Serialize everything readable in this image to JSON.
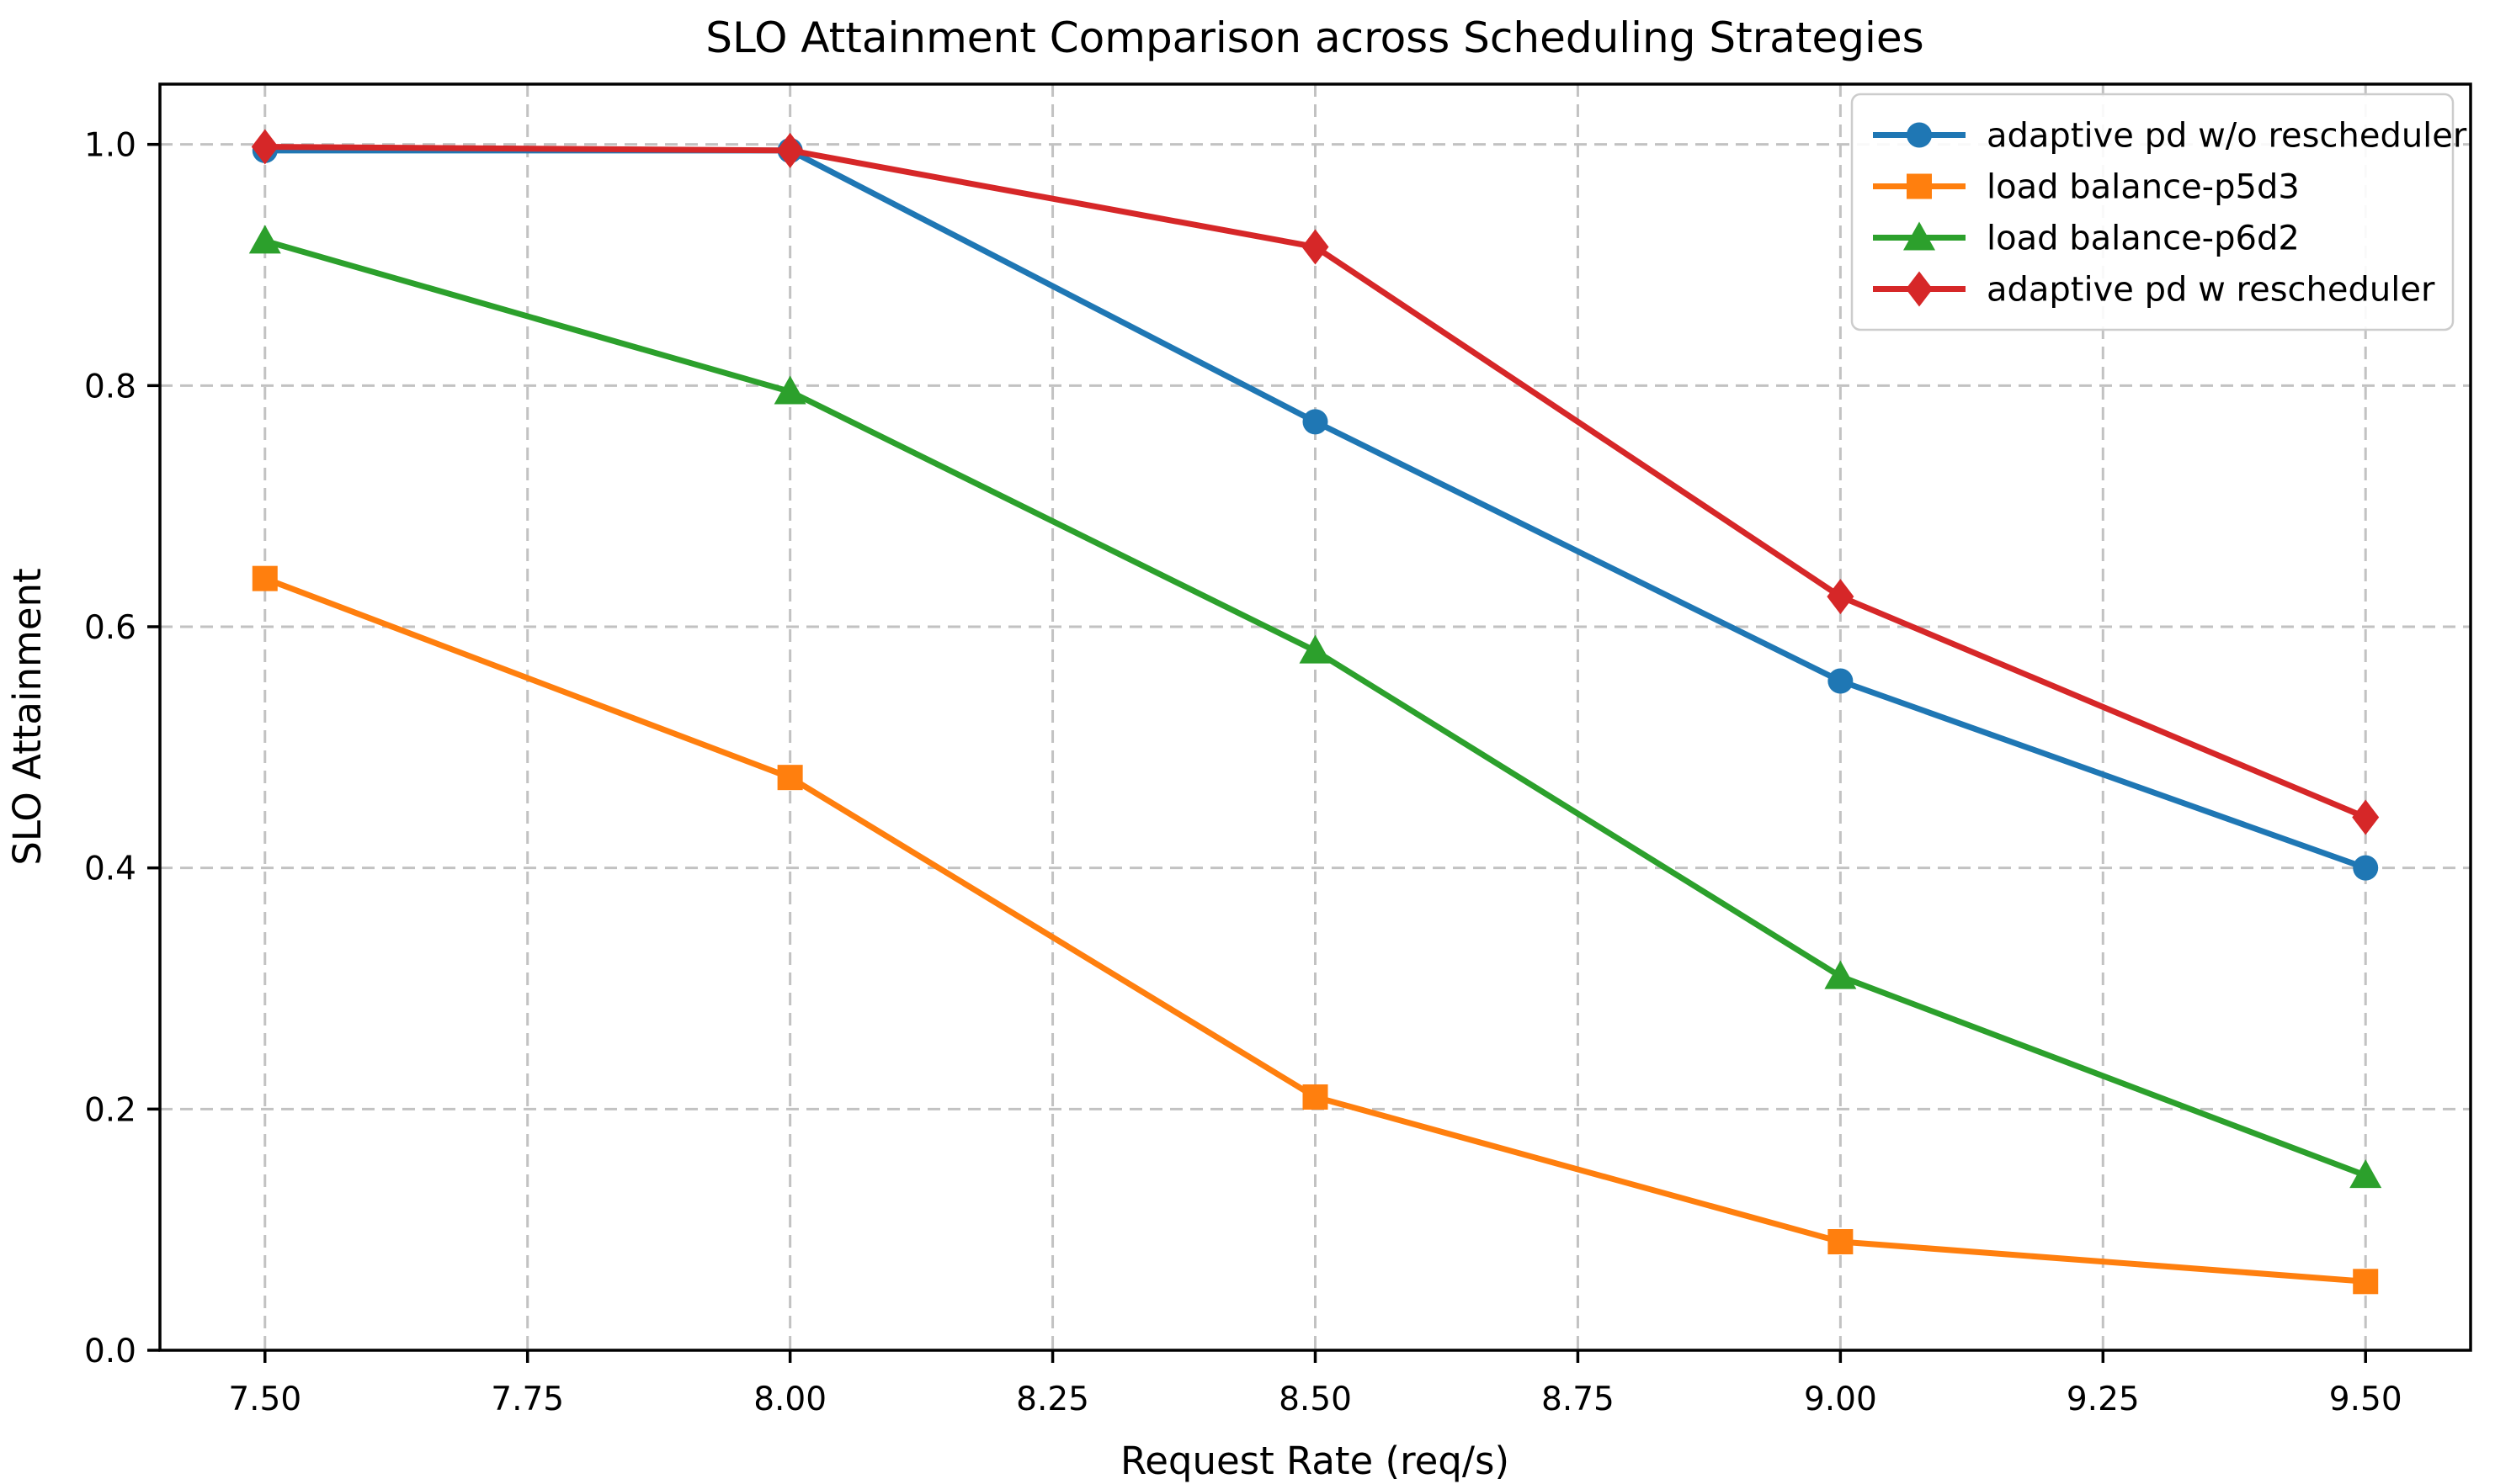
{
  "chart_data": {
    "type": "line",
    "title": "SLO Attainment Comparison across Scheduling Strategies",
    "xlabel": "Request Rate (req/s)",
    "ylabel": "SLO Attainment",
    "x": [
      7.5,
      8.0,
      8.5,
      9.0,
      9.5
    ],
    "series": [
      {
        "name": "adaptive pd w/o rescheduler",
        "color": "#1f77b4",
        "marker": "circle",
        "values": [
          0.995,
          0.995,
          0.77,
          0.555,
          0.4
        ]
      },
      {
        "name": "load balance-p5d3",
        "color": "#ff7f0e",
        "marker": "square",
        "values": [
          0.64,
          0.475,
          0.21,
          0.09,
          0.057
        ]
      },
      {
        "name": "load balance-p6d2",
        "color": "#2ca02c",
        "marker": "triangle",
        "values": [
          0.92,
          0.795,
          0.58,
          0.31,
          0.145
        ]
      },
      {
        "name": "adaptive pd w rescheduler",
        "color": "#d62728",
        "marker": "diamond",
        "values": [
          0.998,
          0.995,
          0.915,
          0.625,
          0.442
        ]
      }
    ],
    "x_ticks": [
      7.5,
      7.75,
      8.0,
      8.25,
      8.5,
      8.75,
      9.0,
      9.25,
      9.5
    ],
    "x_tick_labels": [
      "7.50",
      "7.75",
      "8.00",
      "8.25",
      "8.50",
      "8.75",
      "9.00",
      "9.25",
      "9.50"
    ],
    "y_ticks": [
      0.0,
      0.2,
      0.4,
      0.6,
      0.8,
      1.0
    ],
    "y_tick_labels": [
      "0.0",
      "0.2",
      "0.4",
      "0.6",
      "0.8",
      "1.0"
    ],
    "xlim": [
      7.4,
      9.6
    ],
    "ylim": [
      0.0,
      1.05
    ],
    "grid": {
      "on": true,
      "style": "dashed",
      "color": "#c2c2c2"
    },
    "legend": {
      "position": "upper right",
      "border_color": "#cccccc",
      "background": "#ffffff"
    },
    "axis_color": "#000000",
    "background_color": "#ffffff"
  }
}
